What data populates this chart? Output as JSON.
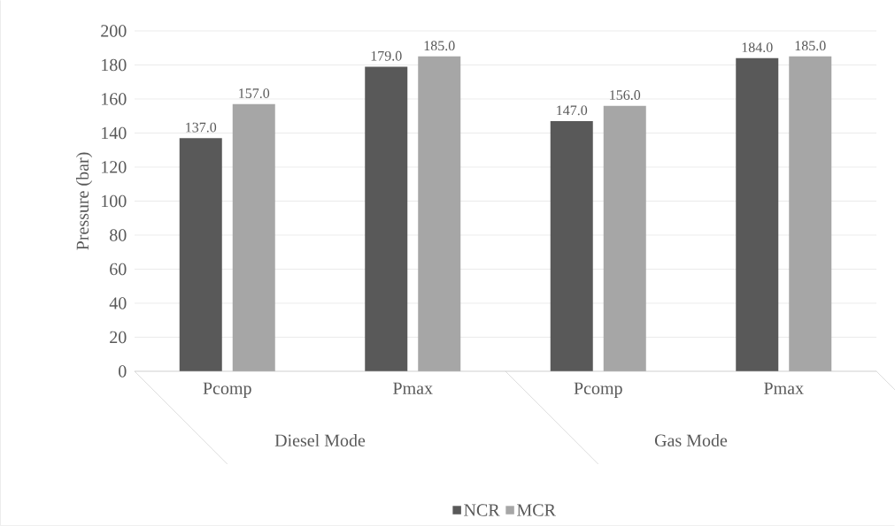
{
  "chart_data": {
    "type": "bar",
    "ylabel": "Pressure (bar)",
    "categories": [
      "Pcomp",
      "Pmax",
      "Pcomp",
      "Pmax"
    ],
    "annotations": [
      "Diesel Mode",
      "Gas Mode"
    ],
    "series": [
      {
        "name": "NCR",
        "color": "#595959",
        "values": [
          137,
          179,
          147,
          184
        ],
        "value_labels": [
          "137.0",
          "179.0",
          "147.0",
          "184.0"
        ]
      },
      {
        "name": "MCR",
        "color": "#a6a6a6",
        "values": [
          157,
          185,
          156,
          185
        ],
        "value_labels": [
          "157.0",
          "185.0",
          "156.0",
          "185.0"
        ]
      }
    ],
    "ylim": [
      0,
      200
    ],
    "yticks": [
      0,
      20,
      40,
      60,
      80,
      100,
      120,
      140,
      160,
      180,
      200
    ],
    "grid": "y",
    "legend": "bottom"
  }
}
